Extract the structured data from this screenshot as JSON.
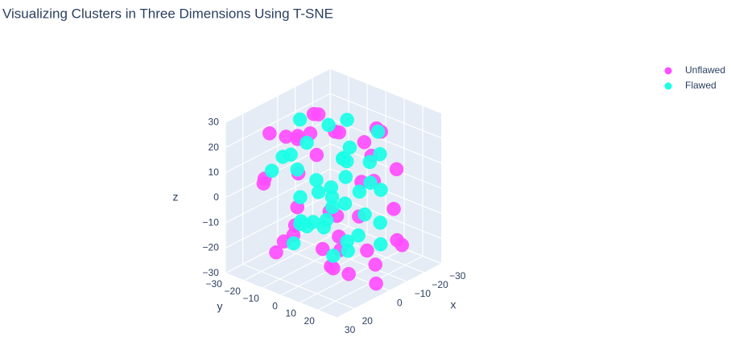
{
  "chart_data": {
    "type": "scatter3d",
    "title": "Visualizing Clusters in Three Dimensions Using T-SNE",
    "x_label": "x",
    "y_label": "y",
    "z_label": "z",
    "xlim": [
      -30,
      30
    ],
    "ylim": [
      -30,
      30
    ],
    "zlim": [
      -30,
      30
    ],
    "xticks": [
      {
        "value": -30,
        "label": "−30"
      },
      {
        "value": -20,
        "label": "−20"
      },
      {
        "value": -10,
        "label": "−10"
      },
      0,
      20,
      30
    ],
    "yticks": [
      {
        "value": -30,
        "label": "−30"
      },
      {
        "value": -20,
        "label": "−20"
      },
      {
        "value": -10,
        "label": "−10"
      },
      0,
      10,
      20
    ],
    "zticks": [
      {
        "value": -30,
        "label": "−30"
      },
      {
        "value": -20,
        "label": "−20"
      },
      {
        "value": -10,
        "label": "−10"
      },
      0,
      10,
      20,
      30
    ],
    "grid": true,
    "legend": "top-right",
    "series": [
      {
        "name": "Unflawed",
        "color": "#ff4dff",
        "x": [
          -22,
          -18,
          -15,
          -10,
          -5,
          0,
          4,
          8,
          12,
          16,
          20,
          22,
          -20,
          -12,
          -6,
          2,
          10,
          18,
          24,
          -24,
          -16,
          -8,
          6,
          14,
          0,
          -2,
          5,
          -14,
          15,
          20,
          -25,
          25,
          -10,
          10,
          0,
          -5,
          8,
          -20,
          18,
          3
        ],
        "y": [
          5,
          -15,
          20,
          -20,
          18,
          -8,
          22,
          -18,
          10,
          -22,
          0,
          15,
          -5,
          12,
          -25,
          25,
          -10,
          8,
          -15,
          10,
          22,
          -20,
          14,
          -6,
          -2,
          20,
          -22,
          2,
          18,
          -12,
          -3,
          3,
          25,
          -25,
          0,
          12,
          -14,
          -18,
          20,
          6
        ],
        "z": [
          18,
          -20,
          10,
          22,
          -25,
          29,
          -15,
          20,
          -22,
          5,
          15,
          -10,
          -18,
          25,
          12,
          -28,
          -5,
          24,
          8,
          -12,
          -20,
          15,
          -26,
          26,
          -8,
          10,
          -24,
          0,
          -12,
          -20,
          5,
          -3,
          -15,
          20,
          -30,
          22,
          -18,
          12,
          -5,
          27
        ]
      },
      {
        "name": "Flawed",
        "color": "#1affe6",
        "x": [
          -15,
          -10,
          -5,
          0,
          5,
          10,
          15,
          -12,
          -6,
          3,
          9,
          14,
          -18,
          -8,
          0,
          8,
          18,
          -14,
          -4,
          6,
          12,
          -16,
          -2,
          4,
          16,
          -10,
          0,
          10,
          -6,
          6,
          -20,
          20,
          -12,
          12,
          0,
          -3,
          7,
          -8,
          10,
          2
        ],
        "y": [
          10,
          -12,
          15,
          -18,
          12,
          -10,
          5,
          -5,
          20,
          -15,
          8,
          -20,
          0,
          18,
          -8,
          15,
          -6,
          12,
          -18,
          2,
          18,
          -10,
          6,
          -14,
          10,
          -2,
          20,
          -8,
          -20,
          5,
          -10,
          8,
          14,
          -16,
          0,
          -4,
          12,
          6,
          -12,
          16
        ],
        "z": [
          22,
          20,
          15,
          24,
          18,
          10,
          12,
          -10,
          5,
          -5,
          0,
          8,
          -15,
          -18,
          -2,
          -12,
          20,
          14,
          -20,
          -8,
          16,
          5,
          -22,
          -15,
          -5,
          25,
          10,
          -10,
          12,
          2,
          8,
          -2,
          -12,
          14,
          -25,
          0,
          20,
          -18,
          -20,
          6
        ]
      }
    ]
  }
}
